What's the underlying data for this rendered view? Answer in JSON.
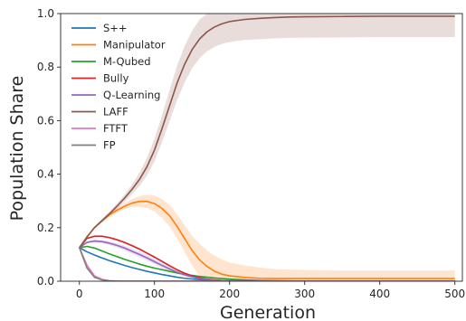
{
  "chart_data": {
    "type": "line",
    "xlabel": "Generation",
    "ylabel": "Population Share",
    "xlim": [
      -25,
      510
    ],
    "ylim": [
      0,
      1.0
    ],
    "xticks": [
      0,
      100,
      200,
      300,
      400,
      500
    ],
    "yticks": [
      0.0,
      0.2,
      0.4,
      0.6,
      0.8,
      1.0
    ],
    "xtick_labels": [
      "0",
      "100",
      "200",
      "300",
      "400",
      "500"
    ],
    "ytick_labels": [
      "0.0",
      "0.2",
      "0.4",
      "0.6",
      "0.8",
      "1.0"
    ],
    "grid": false,
    "legend_position": "top-left",
    "x": [
      0,
      10,
      20,
      30,
      40,
      50,
      60,
      70,
      80,
      90,
      100,
      110,
      120,
      130,
      140,
      150,
      160,
      170,
      180,
      190,
      200,
      220,
      240,
      260,
      280,
      300,
      350,
      400,
      450,
      500
    ],
    "series": [
      {
        "name": "S++",
        "color": "#1f77b4",
        "values": [
          0.125,
          0.11,
          0.098,
          0.087,
          0.077,
          0.068,
          0.059,
          0.051,
          0.044,
          0.037,
          0.031,
          0.025,
          0.02,
          0.015,
          0.011,
          0.008,
          0.006,
          0.004,
          0.003,
          0.002,
          0.001,
          0.0,
          0.0,
          0.0,
          0.0,
          0.0,
          0.0,
          0.0,
          0.0,
          0.0
        ],
        "band": [
          0.0,
          0.0,
          0.0,
          0.0,
          0.0,
          0.0,
          0.0,
          0.0,
          0.0,
          0.0,
          0.0,
          0.0,
          0.0,
          0.0,
          0.0,
          0.0,
          0.0,
          0.0,
          0.0,
          0.0,
          0.0,
          0.0,
          0.0,
          0.0,
          0.0,
          0.0,
          0.0,
          0.0,
          0.0,
          0.0
        ]
      },
      {
        "name": "Manipulator",
        "color": "#ff7f0e",
        "values": [
          0.125,
          0.165,
          0.2,
          0.225,
          0.248,
          0.265,
          0.28,
          0.292,
          0.298,
          0.298,
          0.29,
          0.272,
          0.245,
          0.205,
          0.16,
          0.115,
          0.08,
          0.055,
          0.037,
          0.026,
          0.02,
          0.014,
          0.011,
          0.01,
          0.01,
          0.01,
          0.01,
          0.01,
          0.01,
          0.01
        ],
        "band": [
          0.0,
          0.002,
          0.004,
          0.006,
          0.008,
          0.01,
          0.012,
          0.015,
          0.02,
          0.025,
          0.03,
          0.035,
          0.04,
          0.045,
          0.05,
          0.055,
          0.06,
          0.06,
          0.058,
          0.055,
          0.05,
          0.045,
          0.04,
          0.035,
          0.033,
          0.032,
          0.03,
          0.03,
          0.03,
          0.03
        ]
      },
      {
        "name": "M-Qubed",
        "color": "#2ca02c",
        "values": [
          0.125,
          0.13,
          0.124,
          0.113,
          0.102,
          0.092,
          0.082,
          0.073,
          0.064,
          0.056,
          0.049,
          0.043,
          0.037,
          0.031,
          0.026,
          0.022,
          0.018,
          0.015,
          0.012,
          0.01,
          0.008,
          0.005,
          0.003,
          0.002,
          0.001,
          0.0,
          0.0,
          0.0,
          0.0,
          0.0
        ],
        "band": [
          0.0,
          0.002,
          0.003,
          0.003,
          0.003,
          0.003,
          0.003,
          0.003,
          0.003,
          0.003,
          0.003,
          0.003,
          0.003,
          0.003,
          0.002,
          0.002,
          0.002,
          0.002,
          0.002,
          0.001,
          0.001,
          0.001,
          0.0,
          0.0,
          0.0,
          0.0,
          0.0,
          0.0,
          0.0,
          0.0
        ]
      },
      {
        "name": "Bully",
        "color": "#d62728",
        "values": [
          0.125,
          0.16,
          0.168,
          0.168,
          0.163,
          0.155,
          0.145,
          0.133,
          0.12,
          0.105,
          0.09,
          0.074,
          0.058,
          0.043,
          0.03,
          0.02,
          0.013,
          0.008,
          0.005,
          0.003,
          0.002,
          0.001,
          0.0,
          0.0,
          0.0,
          0.0,
          0.0,
          0.0,
          0.0,
          0.0
        ],
        "band": [
          0.0,
          0.003,
          0.004,
          0.004,
          0.004,
          0.004,
          0.004,
          0.004,
          0.004,
          0.004,
          0.004,
          0.004,
          0.004,
          0.004,
          0.003,
          0.003,
          0.002,
          0.002,
          0.001,
          0.001,
          0.0,
          0.0,
          0.0,
          0.0,
          0.0,
          0.0,
          0.0,
          0.0,
          0.0,
          0.0
        ]
      },
      {
        "name": "Q-Learning",
        "color": "#9467bd",
        "values": [
          0.125,
          0.145,
          0.15,
          0.148,
          0.142,
          0.134,
          0.124,
          0.112,
          0.1,
          0.087,
          0.073,
          0.059,
          0.046,
          0.034,
          0.024,
          0.016,
          0.01,
          0.006,
          0.004,
          0.002,
          0.001,
          0.0,
          0.0,
          0.0,
          0.0,
          0.0,
          0.0,
          0.0,
          0.0,
          0.0
        ],
        "band": [
          0.0,
          0.003,
          0.005,
          0.006,
          0.007,
          0.008,
          0.009,
          0.01,
          0.01,
          0.01,
          0.01,
          0.01,
          0.009,
          0.008,
          0.007,
          0.005,
          0.004,
          0.003,
          0.002,
          0.001,
          0.001,
          0.0,
          0.0,
          0.0,
          0.0,
          0.0,
          0.0,
          0.0,
          0.0,
          0.0
        ]
      },
      {
        "name": "LAFF",
        "color": "#8c564b",
        "values": [
          0.125,
          0.165,
          0.2,
          0.226,
          0.252,
          0.28,
          0.31,
          0.343,
          0.38,
          0.428,
          0.49,
          0.57,
          0.655,
          0.74,
          0.81,
          0.865,
          0.905,
          0.932,
          0.95,
          0.962,
          0.97,
          0.978,
          0.982,
          0.985,
          0.987,
          0.988,
          0.989,
          0.99,
          0.99,
          0.99
        ],
        "band": [
          0.0,
          0.002,
          0.004,
          0.006,
          0.008,
          0.01,
          0.013,
          0.018,
          0.025,
          0.033,
          0.042,
          0.05,
          0.058,
          0.064,
          0.068,
          0.07,
          0.072,
          0.073,
          0.074,
          0.075,
          0.076,
          0.077,
          0.078,
          0.078,
          0.078,
          0.078,
          0.078,
          0.078,
          0.078,
          0.078
        ]
      },
      {
        "name": "FTFT",
        "color": "#e377c2",
        "values": [
          0.125,
          0.06,
          0.02,
          0.007,
          0.002,
          0.001,
          0.0,
          0.0,
          0.0,
          0.0,
          0.0,
          0.0,
          0.0,
          0.0,
          0.0,
          0.0,
          0.0,
          0.0,
          0.0,
          0.0,
          0.0,
          0.0,
          0.0,
          0.0,
          0.0,
          0.0,
          0.0,
          0.0,
          0.0,
          0.0
        ],
        "band": [
          0.0,
          0.002,
          0.002,
          0.001,
          0.0,
          0.0,
          0.0,
          0.0,
          0.0,
          0.0,
          0.0,
          0.0,
          0.0,
          0.0,
          0.0,
          0.0,
          0.0,
          0.0,
          0.0,
          0.0,
          0.0,
          0.0,
          0.0,
          0.0,
          0.0,
          0.0,
          0.0,
          0.0,
          0.0,
          0.0
        ]
      },
      {
        "name": "FP",
        "color": "#7f7f7f",
        "values": [
          0.125,
          0.05,
          0.015,
          0.005,
          0.001,
          0.0,
          0.0,
          0.0,
          0.0,
          0.0,
          0.0,
          0.0,
          0.0,
          0.0,
          0.0,
          0.0,
          0.0,
          0.0,
          0.0,
          0.0,
          0.0,
          0.0,
          0.0,
          0.0,
          0.0,
          0.0,
          0.0,
          0.0,
          0.0,
          0.0
        ],
        "band": [
          0.0,
          0.002,
          0.002,
          0.001,
          0.0,
          0.0,
          0.0,
          0.0,
          0.0,
          0.0,
          0.0,
          0.0,
          0.0,
          0.0,
          0.0,
          0.0,
          0.0,
          0.0,
          0.0,
          0.0,
          0.0,
          0.0,
          0.0,
          0.0,
          0.0,
          0.0,
          0.0,
          0.0,
          0.0,
          0.0
        ]
      }
    ]
  }
}
